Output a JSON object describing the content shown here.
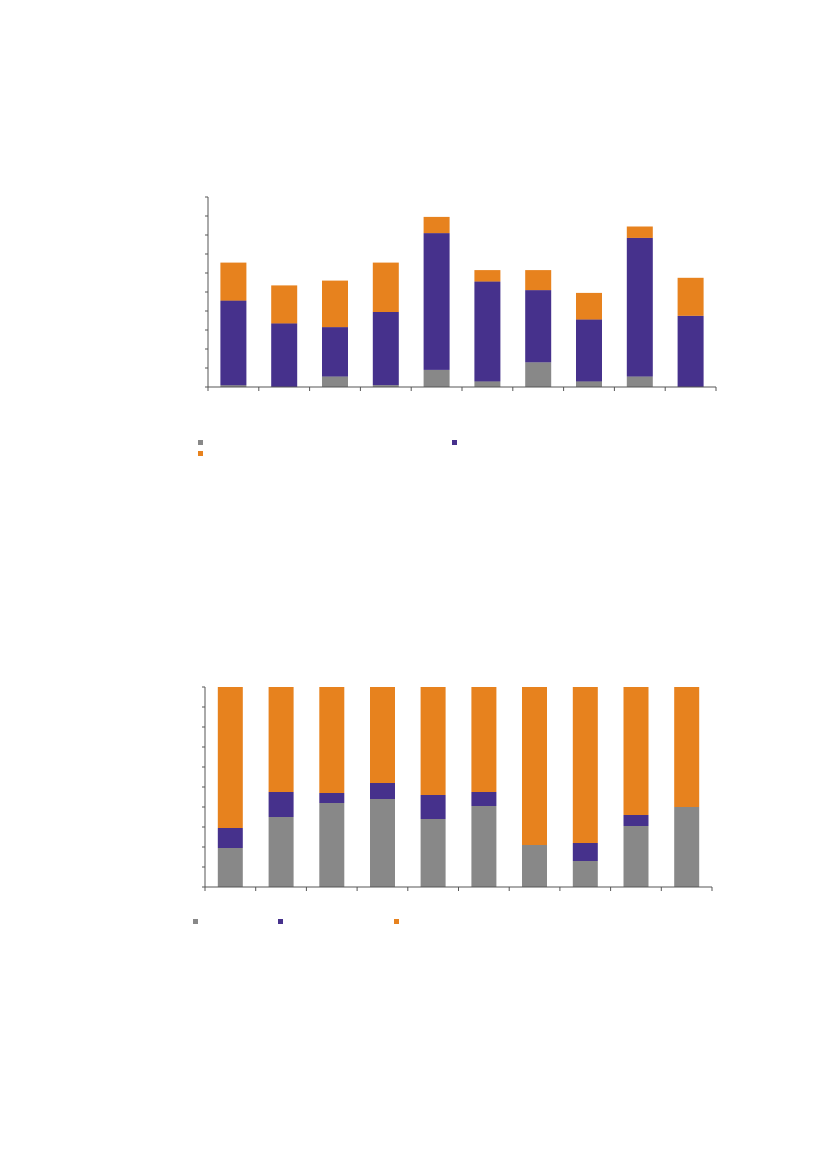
{
  "colors": {
    "grey": "#888888",
    "purple": "#46318c",
    "orange": "#e7821e",
    "axis": "#555555"
  },
  "chart_data": [
    {
      "type": "bar",
      "stacked": true,
      "title": "",
      "xlabel": "",
      "ylabel": "",
      "categories": [
        "",
        "",
        "",
        "",
        "",
        "",
        "",
        "",
        "",
        ""
      ],
      "ylim": [
        0,
        100
      ],
      "y_tick_count": 10,
      "grid": false,
      "legend_position": "bottom",
      "series": [
        {
          "color_key": "grey",
          "values": [
            1,
            0,
            5.5,
            1,
            9,
            3,
            13,
            3,
            5.5,
            0
          ]
        },
        {
          "color_key": "purple",
          "values": [
            44.5,
            33.5,
            26,
            38.5,
            72,
            52.5,
            38,
            32.5,
            73,
            37.5
          ]
        },
        {
          "color_key": "orange",
          "values": [
            20,
            20,
            24.5,
            26,
            8.5,
            6,
            10.5,
            14,
            6,
            20
          ]
        }
      ]
    },
    {
      "type": "bar",
      "stacked": true,
      "title": "",
      "xlabel": "",
      "ylabel": "",
      "categories": [
        "",
        "",
        "",
        "",
        "",
        "",
        "",
        "",
        "",
        ""
      ],
      "ylim": [
        0,
        100
      ],
      "y_tick_count": 10,
      "grid": false,
      "legend_position": "bottom",
      "series": [
        {
          "color_key": "grey",
          "values": [
            19.5,
            35,
            42,
            44,
            34,
            40.5,
            21,
            13,
            30.5,
            40
          ]
        },
        {
          "color_key": "purple",
          "values": [
            10,
            12.5,
            5,
            8,
            12,
            7,
            0,
            9,
            5.5,
            0
          ]
        },
        {
          "color_key": "orange",
          "values": [
            70.5,
            52.5,
            53,
            48,
            54,
            52.5,
            79,
            78,
            64,
            60
          ]
        }
      ]
    }
  ]
}
